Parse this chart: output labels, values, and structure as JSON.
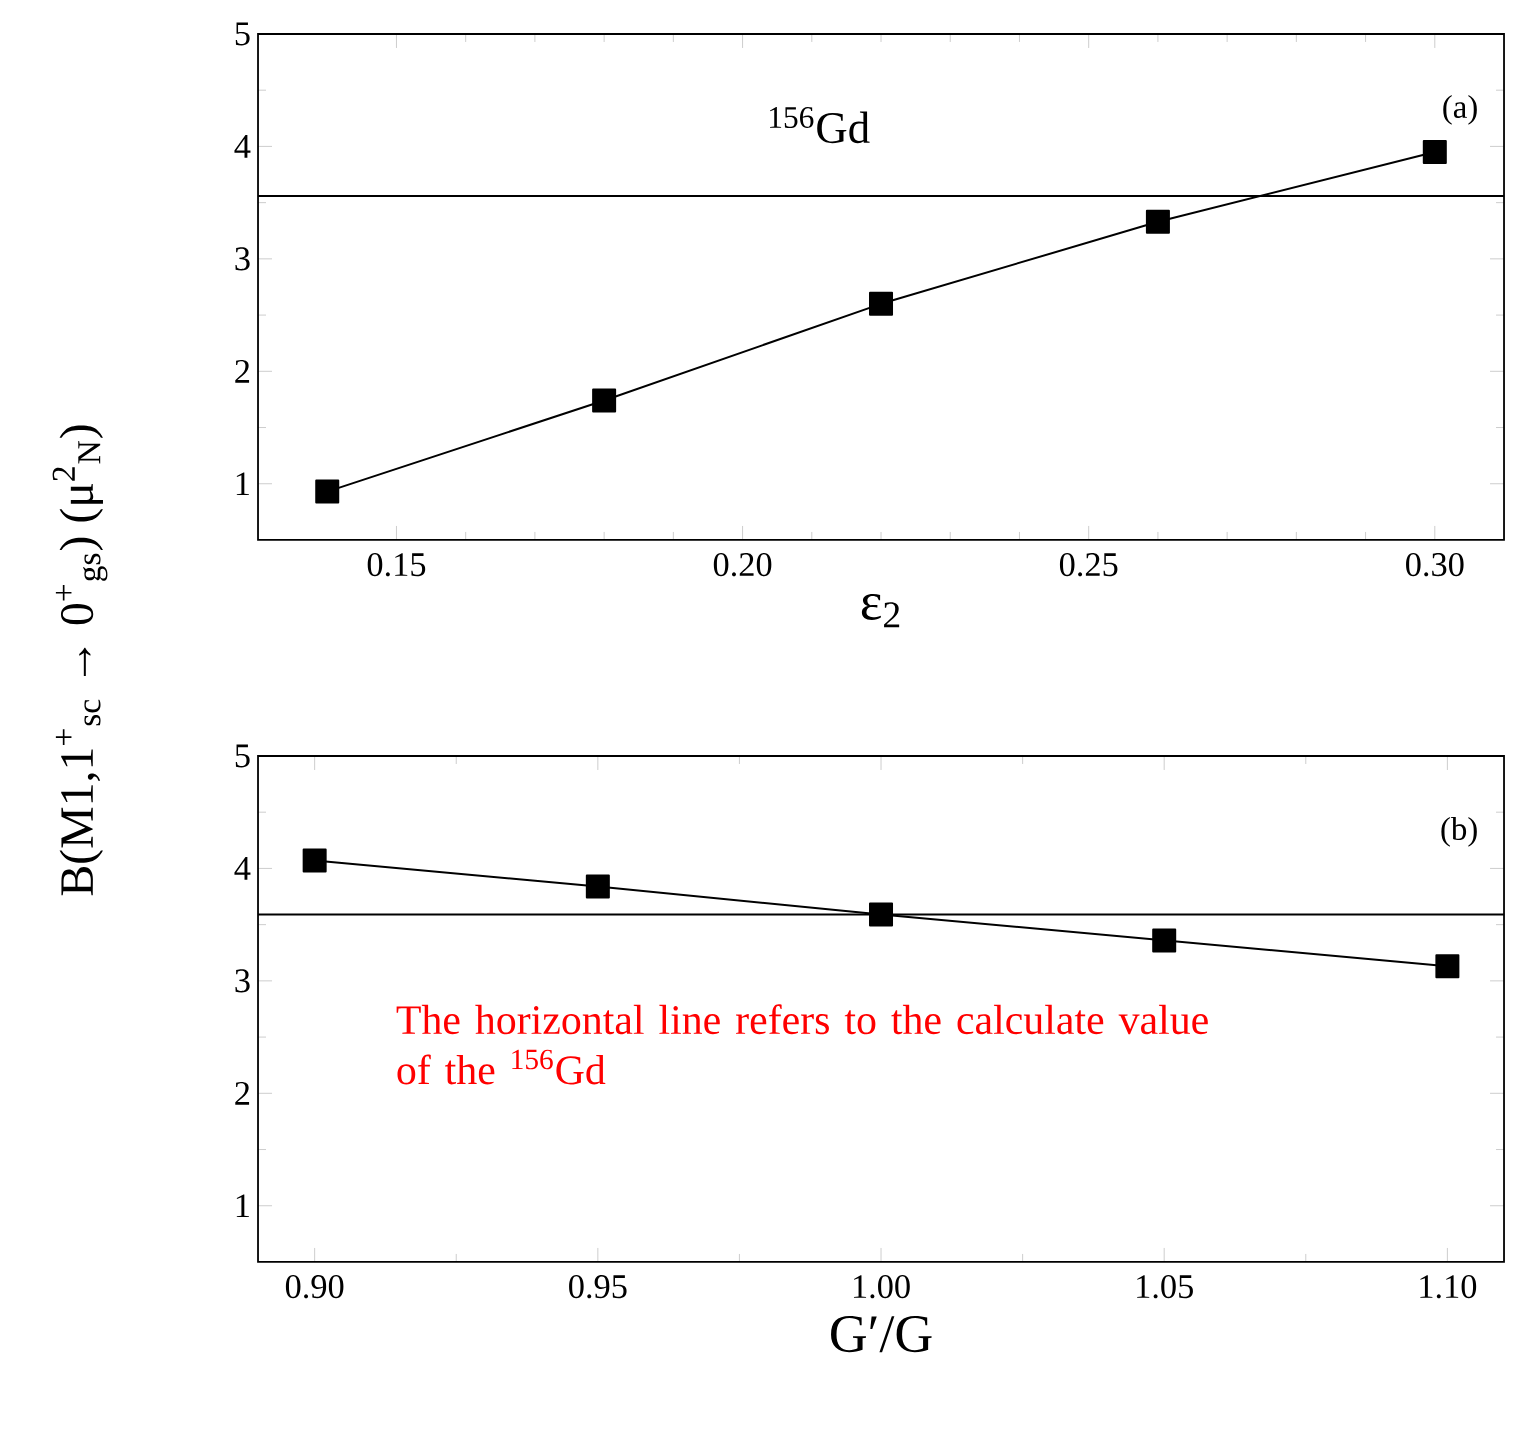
{
  "chart_data": [
    {
      "type": "line",
      "x": [
        0.14,
        0.18,
        0.22,
        0.26,
        0.3
      ],
      "values": [
        0.93,
        1.74,
        2.6,
        3.33,
        3.95
      ],
      "color": "#000000",
      "marker": "square",
      "line_style": "solid",
      "xlim": [
        0.13,
        0.31
      ],
      "ylim": [
        0.5,
        5
      ],
      "xticks": [
        {
          "value": 0.15,
          "label": "0.15"
        },
        {
          "value": 0.2,
          "label": "0.20"
        },
        {
          "value": 0.25,
          "label": "0.25"
        },
        {
          "value": 0.3,
          "label": "0.30"
        }
      ],
      "yticks": [
        1,
        2,
        3,
        4,
        5
      ],
      "xlabel": "ε$_{2}$",
      "ylabel": "B(M1,1$^{+}$$_{sc}$ → 0$^{+}$$_{gs}$) (μ$^{2}$$_{N}$)",
      "ref_lines": [
        {
          "axis": "y",
          "value": 3.56,
          "color": "#000000"
        }
      ],
      "annotations": [
        "$^{156}$Gd",
        "(a)"
      ]
    },
    {
      "type": "line",
      "x": [
        0.9,
        0.95,
        1.0,
        1.05,
        1.1
      ],
      "values": [
        4.07,
        3.84,
        3.59,
        3.36,
        3.13
      ],
      "color": "#000000",
      "marker": "square",
      "line_style": "solid",
      "xlim": [
        0.89,
        1.11
      ],
      "ylim": [
        0.5,
        5
      ],
      "xticks": [
        {
          "value": 0.9,
          "label": "0.90"
        },
        {
          "value": 0.95,
          "label": "0.95"
        },
        {
          "value": 1.0,
          "label": "1.00"
        },
        {
          "value": 1.05,
          "label": "1.05"
        },
        {
          "value": 1.1,
          "label": "1.10"
        }
      ],
      "yticks": [
        1,
        2,
        3,
        4,
        5
      ],
      "xlabel": "G′/G",
      "ref_lines": [
        {
          "axis": "y",
          "value": 3.59,
          "color": "#000000"
        }
      ],
      "annotations": [
        "(b)",
        "The horizontal line refers to the calculate value of the $^{156}$Gd"
      ]
    }
  ]
}
